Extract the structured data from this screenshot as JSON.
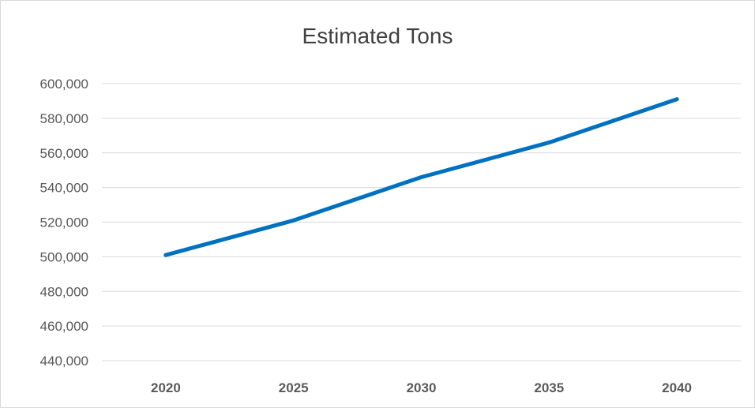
{
  "chart_data": {
    "type": "line",
    "title": "Estimated Tons",
    "xlabel": "",
    "ylabel": "",
    "categories": [
      "2020",
      "2025",
      "2030",
      "2035",
      "2040"
    ],
    "series": [
      {
        "values": [
          501000,
          521000,
          546000,
          566000,
          591000
        ],
        "color": "#0070c0"
      }
    ],
    "ylim": [
      440000,
      600000
    ],
    "yticks": [
      440000,
      460000,
      480000,
      500000,
      520000,
      540000,
      560000,
      580000,
      600000
    ],
    "ytick_labels": [
      "440,000",
      "460,000",
      "480,000",
      "500,000",
      "520,000",
      "540,000",
      "560,000",
      "580,000",
      "600,000"
    ],
    "grid": true,
    "legend": "none",
    "gridline_color": "#d9d9d9"
  }
}
